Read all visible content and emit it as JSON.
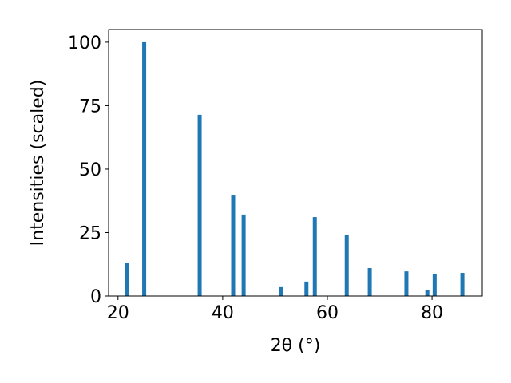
{
  "chart_data": {
    "type": "bar",
    "x": [
      21.7,
      25.0,
      35.6,
      42.0,
      44.0,
      51.1,
      56.0,
      57.6,
      63.7,
      68.1,
      75.1,
      79.1,
      80.5,
      85.8
    ],
    "values": [
      13.2,
      100,
      71.4,
      39.6,
      32.1,
      3.5,
      5.7,
      31.1,
      24.2,
      11.0,
      9.7,
      2.5,
      8.5,
      9.1
    ],
    "color": "#1f77b4",
    "xlabel": "2θ (°)",
    "ylabel": "Intensities (scaled)",
    "xlim": [
      18.2,
      89.6
    ],
    "xticks": [
      20,
      40,
      60,
      80
    ],
    "ylim": [
      0,
      105
    ],
    "yticks": [
      0,
      25,
      50,
      75,
      100
    ]
  }
}
